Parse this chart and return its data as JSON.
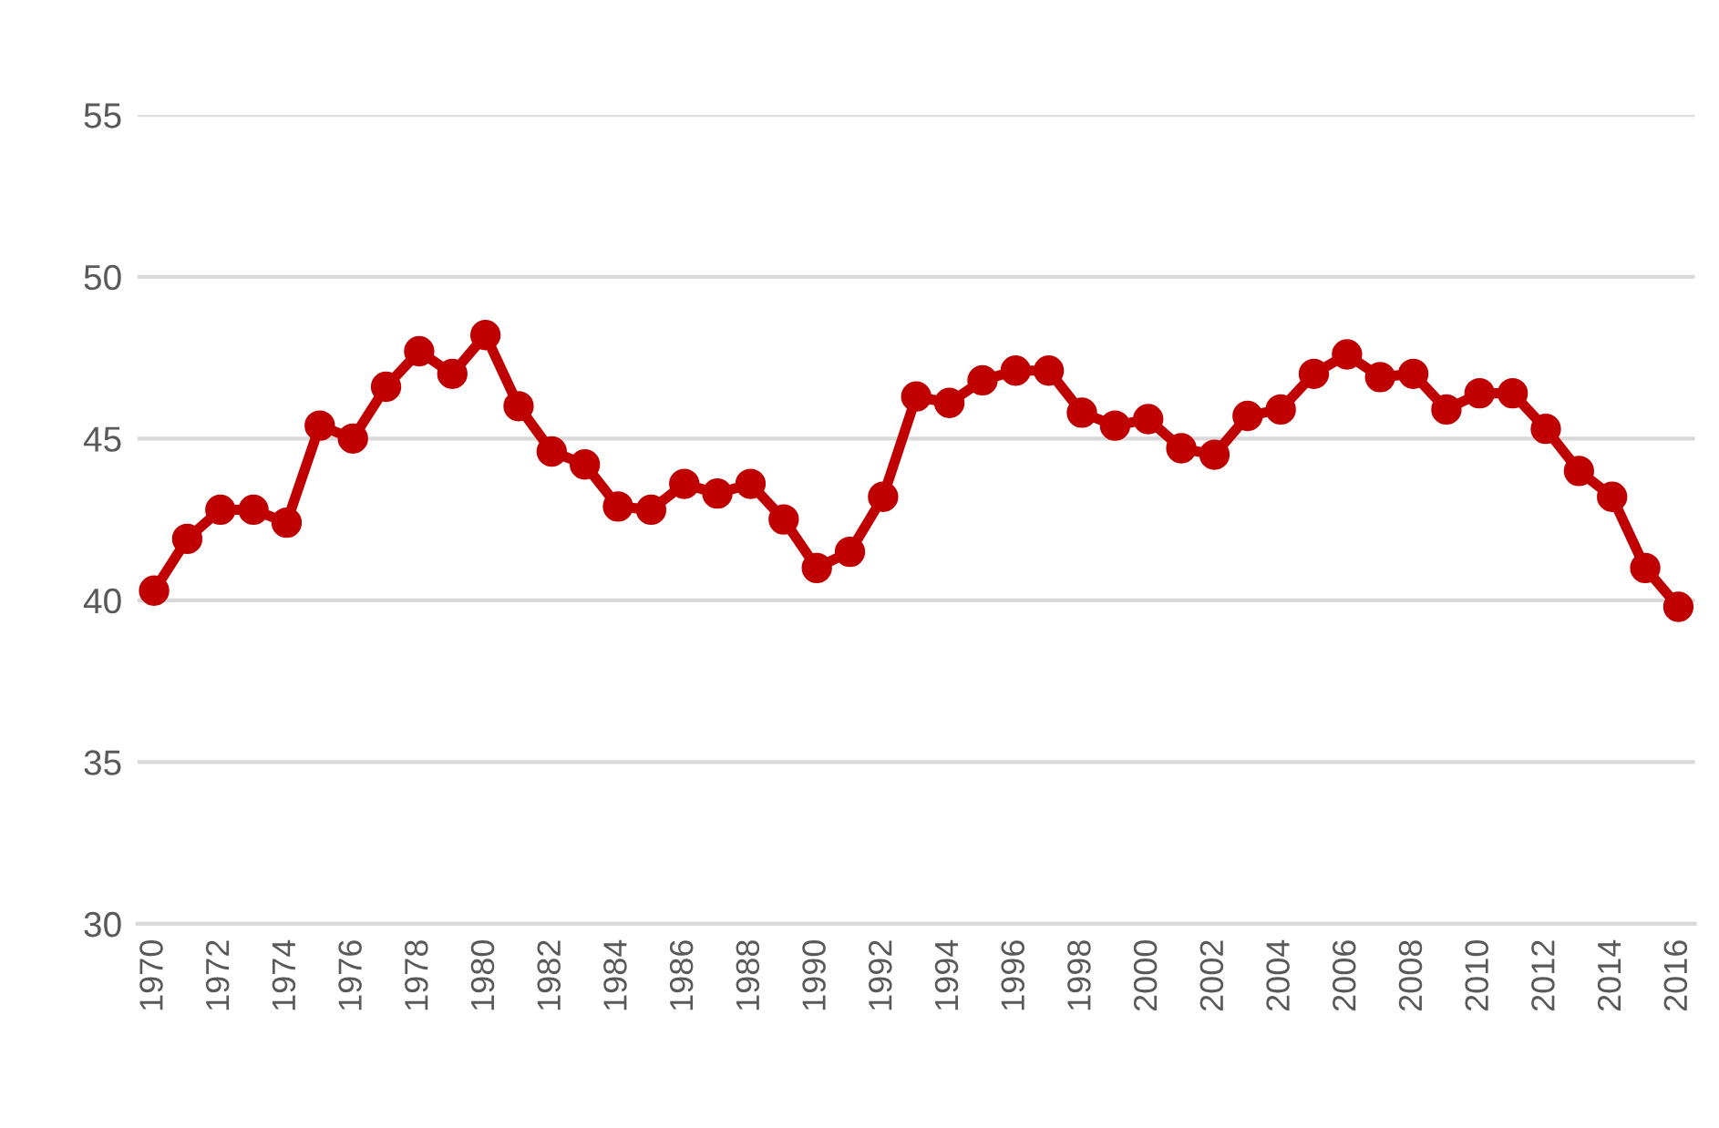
{
  "chart_data": {
    "type": "line",
    "x": [
      1970,
      1971,
      1972,
      1973,
      1974,
      1975,
      1976,
      1977,
      1978,
      1979,
      1980,
      1981,
      1982,
      1983,
      1984,
      1985,
      1986,
      1987,
      1988,
      1989,
      1990,
      1991,
      1992,
      1993,
      1994,
      1995,
      1996,
      1997,
      1998,
      1999,
      2000,
      2001,
      2002,
      2003,
      2004,
      2005,
      2006,
      2007,
      2008,
      2009,
      2010,
      2011,
      2012,
      2013,
      2014,
      2015,
      2016
    ],
    "series": [
      {
        "color": "#c00000",
        "values": [
          40.3,
          41.9,
          42.8,
          42.8,
          42.4,
          45.4,
          45.0,
          46.6,
          47.7,
          47.0,
          48.2,
          46.0,
          44.6,
          44.2,
          42.9,
          42.8,
          43.6,
          43.3,
          43.6,
          42.5,
          41.0,
          41.5,
          43.2,
          46.3,
          46.1,
          46.8,
          47.1,
          47.1,
          45.8,
          45.4,
          45.6,
          44.7,
          44.5,
          45.7,
          45.9,
          47.0,
          47.6,
          46.9,
          47.0,
          45.9,
          46.4,
          46.4,
          45.3,
          44.0,
          43.2,
          41.0,
          39.8
        ]
      }
    ],
    "xlim": [
      1969.5,
      2016.5
    ],
    "xticks": [
      1970,
      1972,
      1974,
      1976,
      1978,
      1980,
      1982,
      1984,
      1986,
      1988,
      1990,
      1992,
      1994,
      1996,
      1998,
      2000,
      2002,
      2004,
      2006,
      2008,
      2010,
      2012,
      2014,
      2016
    ],
    "ylim": [
      30,
      55
    ],
    "yticks": [
      30,
      35,
      40,
      45,
      50,
      55
    ],
    "grid": "y",
    "marker": "circle",
    "line_style": "solid"
  }
}
